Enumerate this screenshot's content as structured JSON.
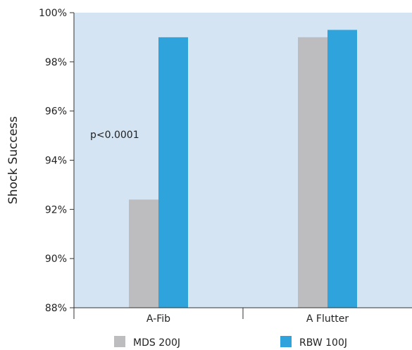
{
  "chart_data": {
    "type": "bar",
    "title": "",
    "xlabel": "",
    "ylabel": "Shock Success",
    "ylim": [
      88,
      100
    ],
    "y_ticks": [
      "88%",
      "90%",
      "92%",
      "94%",
      "96%",
      "98%",
      "100%"
    ],
    "y_tick_values": [
      88,
      90,
      92,
      94,
      96,
      98,
      100
    ],
    "categories": [
      "A-Fib",
      "A Flutter"
    ],
    "series": [
      {
        "name": "MDS 200J",
        "values": [
          92.4,
          99.0
        ],
        "color": "#bdbdbf"
      },
      {
        "name": "RBW 100J",
        "values": [
          99.0,
          99.3
        ],
        "color": "#2ea3dc"
      }
    ],
    "annotations": [
      {
        "text": "p<0.0001",
        "category": "A-Fib"
      }
    ],
    "plot_background": "#d4e4f3",
    "grid": false,
    "legend_position": "bottom"
  }
}
